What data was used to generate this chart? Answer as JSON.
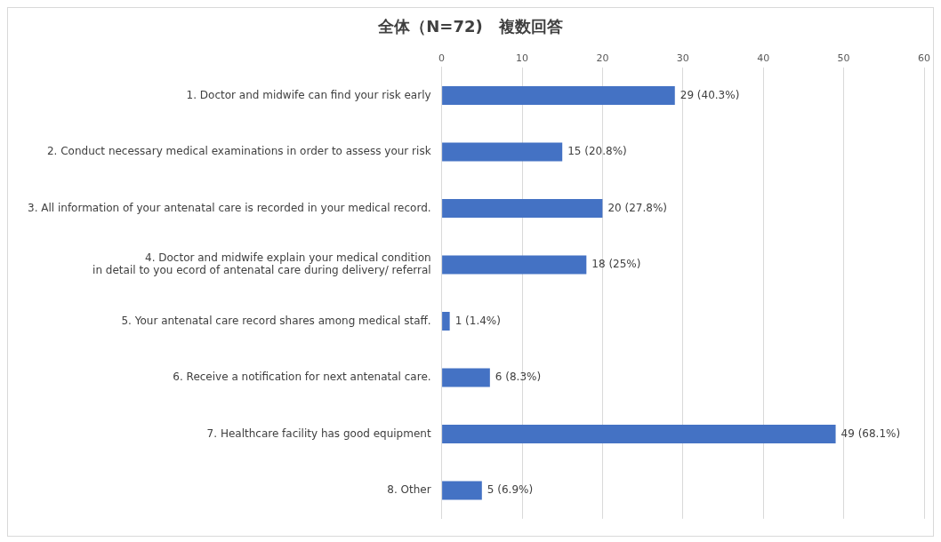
{
  "chart_data": {
    "type": "bar",
    "orientation": "horizontal",
    "title": "全体（N=72)　複数回答",
    "categories": [
      "1. Doctor and midwife can find your risk early",
      "2. Conduct necessary medical examinations in order to assess your risk",
      "3. All information of your antenatal care is recorded in your medical record.",
      "4. Doctor and midwife explain your medical condition\nin detail to you ecord of antenatal care during delivery/ referral",
      "5. Your antenatal care record shares among medical staff.",
      "6. Receive a notification for next antenatal care.",
      "7. Healthcare facility has good equipment",
      "8. Other"
    ],
    "values": [
      29,
      15,
      20,
      18,
      1,
      6,
      49,
      5
    ],
    "value_labels": [
      "29 (40.3%)",
      "15 (20.8%)",
      "20 (27.8%)",
      "18 (25%)",
      "1 (1.4%)",
      "6 (8.3%)",
      "49 (68.1%)",
      "5 (6.9%)"
    ],
    "color": "#4472c4",
    "xlim": [
      0,
      60
    ],
    "xticks": [
      0,
      10,
      20,
      30,
      40,
      50,
      60
    ],
    "grid": "x"
  }
}
